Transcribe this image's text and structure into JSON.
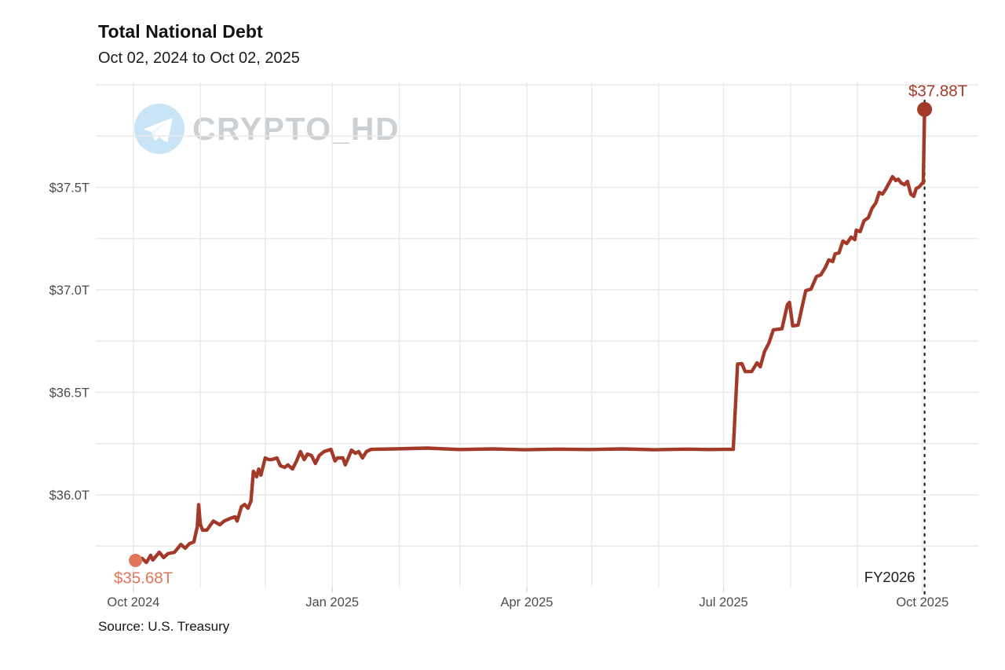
{
  "header": {
    "title": "Total National Debt",
    "subtitle": "Oct 02, 2024 to Oct 02, 2025"
  },
  "watermark": {
    "text": "CRYPTO_HD",
    "icon": "telegram-icon",
    "icon_bg": "#c8e4f6",
    "icon_fg": "#ffffff",
    "text_color": "#c3c8cd"
  },
  "footer": {
    "source": "Source: U.S. Treasury"
  },
  "chart_data": {
    "type": "line",
    "title": "Total National Debt",
    "subtitle": "Oct 02, 2024 to Oct 02, 2025",
    "source": "Source: U.S. Treasury",
    "x_unit": "days since Oct 02, 2024",
    "x_range": [
      -1,
      366
    ],
    "ylim": [
      35.55,
      38.05
    ],
    "grid": true,
    "line_color": "#a33a29",
    "gridline_color": "#e9e9e9",
    "tick_label_color": "#4c4c4c",
    "yticks": [
      {
        "value": 36.0,
        "label": "$36.0T"
      },
      {
        "value": 36.5,
        "label": "$36.5T"
      },
      {
        "value": 37.0,
        "label": "$37.0T"
      },
      {
        "value": 37.5,
        "label": "$37.5T"
      }
    ],
    "ygrid_values": [
      35.75,
      36.0,
      36.25,
      36.5,
      36.75,
      37.0,
      37.25,
      37.5,
      37.75,
      38.0
    ],
    "xticks": [
      {
        "d": -1,
        "label": "Oct 2024"
      },
      {
        "d": 91,
        "label": "Jan 2025"
      },
      {
        "d": 181,
        "label": "Apr 2025"
      },
      {
        "d": 272,
        "label": "Jul 2025"
      },
      {
        "d": 364,
        "label": "Oct 2025"
      }
    ],
    "month_gridlines_d": [
      -1,
      30,
      60,
      91,
      122,
      150,
      181,
      211,
      242,
      272,
      303,
      334,
      364
    ],
    "annotations": {
      "start": {
        "label": "$35.68T",
        "d": 0,
        "value": 35.68,
        "color": "#e2765a"
      },
      "end": {
        "label": "$37.88T",
        "d": 365,
        "value": 37.88,
        "color": "#a33a29"
      },
      "fiscal_year": {
        "label": "FY2026",
        "d": 365
      }
    },
    "series": [
      {
        "name": "Total National Debt ($T)",
        "color": "#a33a29",
        "points": [
          [
            0,
            35.68
          ],
          [
            3,
            35.69
          ],
          [
            5,
            35.67
          ],
          [
            7,
            35.705
          ],
          [
            8,
            35.682
          ],
          [
            11,
            35.72
          ],
          [
            13,
            35.694
          ],
          [
            15,
            35.713
          ],
          [
            18,
            35.72
          ],
          [
            21,
            35.758
          ],
          [
            23,
            35.74
          ],
          [
            25,
            35.762
          ],
          [
            27,
            35.77
          ],
          [
            28.6,
            35.845
          ],
          [
            29.2,
            35.952
          ],
          [
            30,
            35.855
          ],
          [
            31,
            35.828
          ],
          [
            33,
            35.828
          ],
          [
            36,
            35.872
          ],
          [
            39,
            35.854
          ],
          [
            41,
            35.872
          ],
          [
            44,
            35.886
          ],
          [
            46,
            35.893
          ],
          [
            47,
            35.872
          ],
          [
            49,
            35.942
          ],
          [
            50.5,
            35.953
          ],
          [
            52,
            35.935
          ],
          [
            53.4,
            35.969
          ],
          [
            54.5,
            36.115
          ],
          [
            56,
            36.088
          ],
          [
            57,
            36.126
          ],
          [
            58,
            36.096
          ],
          [
            60,
            36.18
          ],
          [
            61.5,
            36.172
          ],
          [
            63,
            36.172
          ],
          [
            65.4,
            36.18
          ],
          [
            67,
            36.142
          ],
          [
            69,
            36.134
          ],
          [
            70.5,
            36.146
          ],
          [
            72.6,
            36.126
          ],
          [
            74.5,
            36.165
          ],
          [
            76.3,
            36.211
          ],
          [
            78,
            36.172
          ],
          [
            79.5,
            36.199
          ],
          [
            81.4,
            36.192
          ],
          [
            83.2,
            36.153
          ],
          [
            85,
            36.192
          ],
          [
            87.2,
            36.211
          ],
          [
            90.4,
            36.222
          ],
          [
            92.3,
            36.165
          ],
          [
            93.4,
            36.18
          ],
          [
            95.9,
            36.18
          ],
          [
            97,
            36.146
          ],
          [
            98.1,
            36.172
          ],
          [
            99.9,
            36.218
          ],
          [
            101.7,
            36.203
          ],
          [
            103.2,
            36.211
          ],
          [
            105,
            36.18
          ],
          [
            106.8,
            36.211
          ],
          [
            109,
            36.222
          ],
          [
            120,
            36.224
          ],
          [
            135,
            36.228
          ],
          [
            150,
            36.221
          ],
          [
            165,
            36.224
          ],
          [
            180,
            36.22
          ],
          [
            195,
            36.223
          ],
          [
            210,
            36.221
          ],
          [
            225,
            36.224
          ],
          [
            240,
            36.22
          ],
          [
            255,
            36.223
          ],
          [
            265,
            36.221
          ],
          [
            272,
            36.222
          ],
          [
            276.5,
            36.222
          ],
          [
            278.5,
            36.638
          ],
          [
            280.5,
            36.64
          ],
          [
            282,
            36.601
          ],
          [
            285,
            36.601
          ],
          [
            287.5,
            36.644
          ],
          [
            289,
            36.625
          ],
          [
            291,
            36.7
          ],
          [
            293,
            36.74
          ],
          [
            295,
            36.805
          ],
          [
            299,
            36.81
          ],
          [
            301.5,
            36.927
          ],
          [
            302.5,
            36.939
          ],
          [
            304,
            36.824
          ],
          [
            306.5,
            36.828
          ],
          [
            308,
            36.9
          ],
          [
            310,
            36.996
          ],
          [
            312.5,
            37.004
          ],
          [
            315,
            37.065
          ],
          [
            317,
            37.073
          ],
          [
            319,
            37.107
          ],
          [
            320.7,
            37.146
          ],
          [
            322.5,
            37.138
          ],
          [
            323.6,
            37.176
          ],
          [
            325.4,
            37.18
          ],
          [
            327.2,
            37.238
          ],
          [
            329,
            37.226
          ],
          [
            331,
            37.257
          ],
          [
            332.7,
            37.245
          ],
          [
            333.4,
            37.291
          ],
          [
            335.2,
            37.284
          ],
          [
            337,
            37.337
          ],
          [
            339,
            37.352
          ],
          [
            340.7,
            37.398
          ],
          [
            342.5,
            37.425
          ],
          [
            344,
            37.475
          ],
          [
            345.5,
            37.467
          ],
          [
            346.6,
            37.483
          ],
          [
            348.8,
            37.525
          ],
          [
            350.2,
            37.552
          ],
          [
            351.7,
            37.533
          ],
          [
            352.8,
            37.54
          ],
          [
            354.2,
            37.521
          ],
          [
            355.7,
            37.513
          ],
          [
            357.1,
            37.529
          ],
          [
            358.6,
            37.467
          ],
          [
            360,
            37.456
          ],
          [
            361.1,
            37.494
          ],
          [
            362.5,
            37.502
          ],
          [
            364,
            37.521
          ],
          [
            364.4,
            37.521
          ],
          [
            365,
            37.88
          ]
        ]
      }
    ],
    "legend": null
  }
}
